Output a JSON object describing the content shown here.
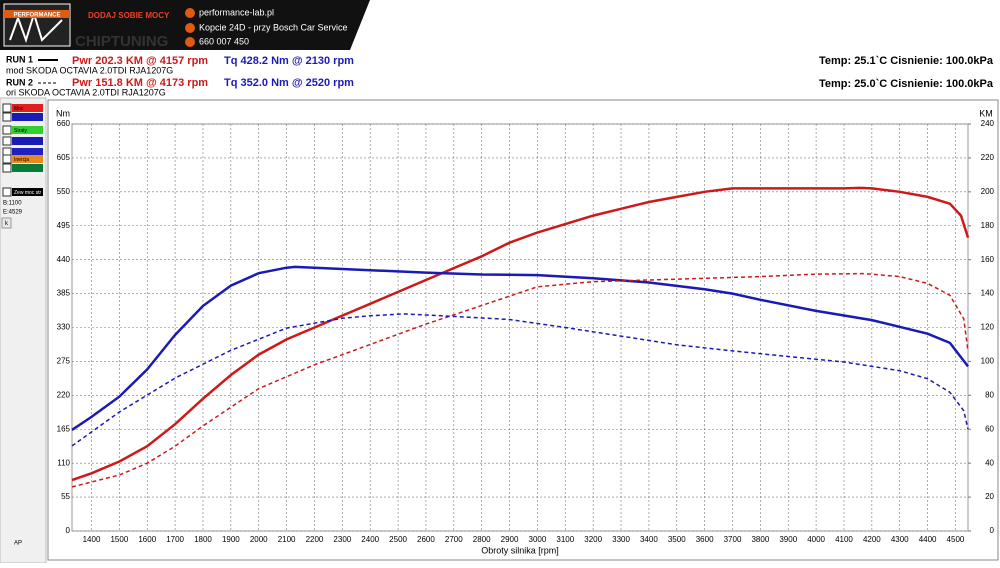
{
  "header": {
    "brand": "PERFORMANCE",
    "slogan": "DODAJ SOBIE MOCY",
    "watermark": "CHIPTUNING",
    "website": "performance-lab.pl",
    "address": "Kopcie 24D - przy Bosch Car Service",
    "phone": "660 007 450"
  },
  "runs": [
    {
      "label": "RUN 1",
      "power": "Pwr  202.3 KM @ 4157 rpm",
      "torque": "Tq 428.2 Nm @ 2130 rpm",
      "description": "mod SKODA OCTAVIA 2.0TDI RJA1207G",
      "conditions": "Temp: 25.1`C   Cisnienie: 100.0kPa"
    },
    {
      "label": "RUN 2",
      "power": "Pwr  151.8 KM @ 4173 rpm",
      "torque": "Tq 352.0 Nm @ 2520 rpm",
      "description": "ori SKODA OCTAVIA 2.0TDI RJA1207G",
      "conditions": "Temp: 25.0`C   Cisnienie: 100.0kPa"
    }
  ],
  "panel": {
    "items": [
      {
        "label": "Moc",
        "color": "#e02020"
      },
      {
        "label": "Straty",
        "color": "#30d030"
      },
      {
        "label": "Inercja",
        "color": "#e88a20"
      },
      {
        "label": "Zew moc str",
        "color": "#000000"
      }
    ],
    "begin": "B:1100",
    "end": "E:4529",
    "button": "k",
    "footer": "AP"
  },
  "chart_data": {
    "type": "line",
    "x_label": "Obroty silnika [rpm]",
    "y_label": "Nm",
    "y2_label": "KM",
    "xlim": [
      1330,
      4545
    ],
    "xticks": [
      1400,
      1500,
      1600,
      1700,
      1800,
      1900,
      2000,
      2100,
      2200,
      2300,
      2400,
      2500,
      2600,
      2700,
      2800,
      2900,
      3000,
      3100,
      3200,
      3300,
      3400,
      3500,
      3600,
      3700,
      3800,
      3900,
      4000,
      4100,
      4200,
      4300,
      4400,
      4500
    ],
    "ylim": [
      0,
      660
    ],
    "yticks": [
      0,
      55,
      110,
      165,
      220,
      275,
      330,
      385,
      440,
      495,
      550,
      605,
      660
    ],
    "y2lim": [
      0,
      240
    ],
    "y2ticks": [
      0,
      20,
      40,
      60,
      80,
      100,
      120,
      140,
      160,
      180,
      200,
      220,
      240
    ],
    "grid": true,
    "series": [
      {
        "color": "#cc1a1a",
        "axis": "y2",
        "dashed": false,
        "x": [
          1330,
          1400,
          1500,
          1600,
          1700,
          1800,
          1900,
          2000,
          2100,
          2200,
          2300,
          2400,
          2500,
          2600,
          2700,
          2800,
          2900,
          3000,
          3100,
          3200,
          3300,
          3400,
          3500,
          3600,
          3700,
          3800,
          3900,
          4000,
          4100,
          4157,
          4200,
          4300,
          4400,
          4480,
          4520,
          4545
        ],
        "values": [
          30,
          34,
          41,
          50,
          63,
          78,
          92,
          104,
          113,
          120,
          127,
          134,
          141,
          148,
          155,
          162,
          170,
          176,
          181,
          186,
          190,
          194,
          197,
          200,
          202,
          202,
          202,
          202,
          202,
          202.3,
          202,
          200,
          197,
          193,
          186,
          173
        ]
      },
      {
        "color": "#1a1ab4",
        "axis": "y",
        "dashed": false,
        "x": [
          1330,
          1400,
          1500,
          1600,
          1700,
          1800,
          1900,
          2000,
          2100,
          2130,
          2200,
          2400,
          2600,
          2800,
          3000,
          3200,
          3400,
          3600,
          3700,
          3800,
          4000,
          4200,
          4400,
          4480,
          4545
        ],
        "values": [
          164,
          185,
          218,
          262,
          318,
          365,
          398,
          418,
          427,
          428.2,
          427,
          423,
          419,
          416,
          415,
          410,
          403,
          392,
          385,
          375,
          357,
          342,
          320,
          305,
          267
        ]
      },
      {
        "color": "#cc1a1a",
        "axis": "y2",
        "dashed": true,
        "x": [
          1330,
          1500,
          1600,
          1700,
          1800,
          1900,
          2000,
          2200,
          2400,
          2600,
          2800,
          3000,
          3200,
          3400,
          3600,
          3800,
          4000,
          4173,
          4300,
          4400,
          4480,
          4530,
          4545
        ],
        "values": [
          26,
          33,
          40,
          50,
          62,
          73,
          84,
          98,
          110,
          122,
          133,
          144,
          147,
          148,
          149,
          150,
          151.5,
          151.8,
          150,
          146,
          139,
          125,
          106
        ]
      },
      {
        "color": "#1a1ab4",
        "axis": "y",
        "dashed": true,
        "x": [
          1330,
          1500,
          1700,
          1900,
          2100,
          2300,
          2400,
          2520,
          2700,
          2900,
          3100,
          3300,
          3500,
          3700,
          3900,
          4100,
          4300,
          4400,
          4480,
          4530,
          4545
        ],
        "values": [
          138,
          193,
          248,
          293,
          329,
          345,
          349,
          352,
          348,
          343,
          330,
          316,
          302,
          292,
          283,
          274,
          260,
          247,
          225,
          195,
          165
        ]
      }
    ]
  }
}
